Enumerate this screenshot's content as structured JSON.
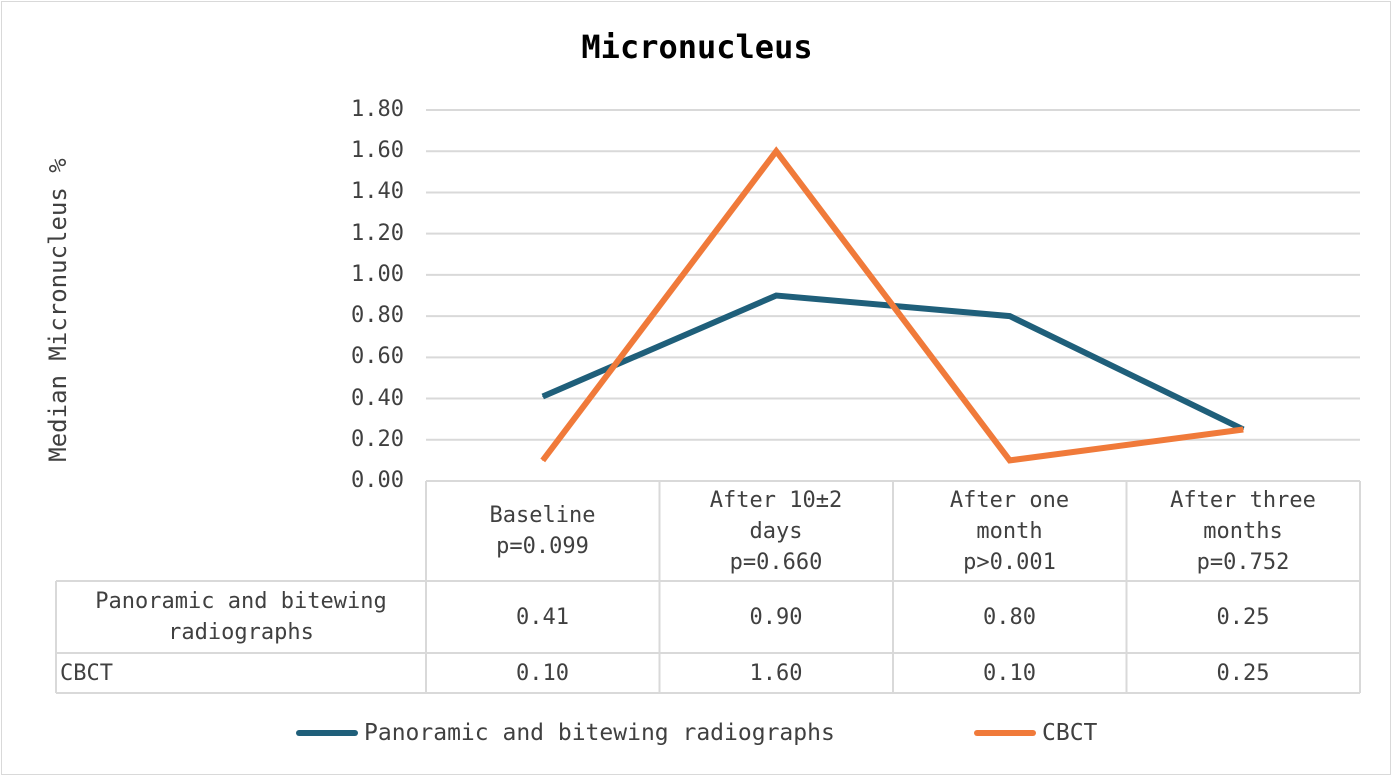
{
  "chart_data": {
    "type": "line",
    "title": "Micronucleus",
    "xlabel": "",
    "ylabel": "Median Micronucleus %",
    "ylim": [
      0,
      1.8
    ],
    "yticks": [
      "0.00",
      "0.20",
      "0.40",
      "0.60",
      "0.80",
      "1.00",
      "1.20",
      "1.40",
      "1.60",
      "1.80"
    ],
    "categories": [
      {
        "name": "Baseline",
        "pvalue": "p=0.099"
      },
      {
        "name": "After 10±2 days",
        "pvalue": "p=0.660"
      },
      {
        "name": "After one month",
        "pvalue": "p>0.001"
      },
      {
        "name": "After three months",
        "pvalue": "p=0.752"
      }
    ],
    "series": [
      {
        "name": "Panoramic and bitewing radiographs",
        "color": "#1f5f7a",
        "values": [
          0.41,
          0.9,
          0.8,
          0.25
        ],
        "value_labels": [
          "0.41",
          "0.90",
          "0.80",
          "0.25"
        ]
      },
      {
        "name": "CBCT",
        "color": "#f07a3a",
        "values": [
          0.1,
          1.6,
          0.1,
          0.25
        ],
        "value_labels": [
          "0.10",
          "1.60",
          "0.10",
          "0.25"
        ]
      }
    ],
    "grid": true,
    "legend": "bottom"
  }
}
